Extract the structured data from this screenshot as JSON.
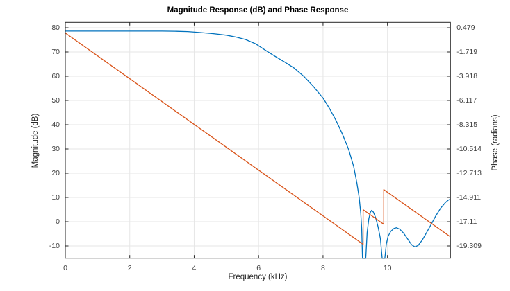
{
  "title": "Magnitude Response (dB) and Phase Response",
  "chart_data": {
    "type": "line",
    "title": "Magnitude Response (dB) and Phase Response",
    "xlabel": "Frequency (kHz)",
    "ylabel_left": "Magnitude (dB)",
    "ylabel_right": "Phase (radians)",
    "xlim": [
      0,
      11.955
    ],
    "ylim_left": [
      -15.06,
      82.2
    ],
    "grid": true,
    "legend": "none",
    "x_ticks": [
      0,
      2,
      4,
      6,
      8,
      10
    ],
    "y_ticks_left": [
      80,
      70,
      60,
      50,
      40,
      30,
      20,
      10,
      0,
      -10
    ],
    "y_tick_labels_right": [
      "0.479",
      "-1.719",
      "-3.918",
      "-6.117",
      "-8.315",
      "-10.514",
      "-12.713",
      "-14.911",
      "-17.11",
      "-19.309"
    ],
    "right_axis_map": {
      "rad_at_80dB": 0.479,
      "rad_per_10dB": 2.1987
    },
    "colors": {
      "magnitude": "#0072BD",
      "phase": "#D95319",
      "grid": "#e6e6e6",
      "axis": "#262626"
    },
    "series": [
      {
        "name": "magnitude_db",
        "axis": "left",
        "color": "#0072BD",
        "points": [
          [
            0,
            78.6
          ],
          [
            0.6,
            78.6
          ],
          [
            1.2,
            78.6
          ],
          [
            1.8,
            78.6
          ],
          [
            2.4,
            78.6
          ],
          [
            3.0,
            78.6
          ],
          [
            3.4,
            78.55
          ],
          [
            3.8,
            78.4
          ],
          [
            4.2,
            78.0
          ],
          [
            4.6,
            77.55
          ],
          [
            5.0,
            76.9
          ],
          [
            5.3,
            76.15
          ],
          [
            5.6,
            75.1
          ],
          [
            5.9,
            73.4
          ],
          [
            6.2,
            70.8
          ],
          [
            6.5,
            68.3
          ],
          [
            6.8,
            65.9
          ],
          [
            7.1,
            63.4
          ],
          [
            7.4,
            60.0
          ],
          [
            7.7,
            55.8
          ],
          [
            8.0,
            51.0
          ],
          [
            8.2,
            46.7
          ],
          [
            8.4,
            41.8
          ],
          [
            8.6,
            36.2
          ],
          [
            8.8,
            29.6
          ],
          [
            8.95,
            22.8
          ],
          [
            9.05,
            16.0
          ],
          [
            9.12,
            10.0
          ],
          [
            9.17,
            3.5
          ],
          [
            9.2,
            -3.0
          ],
          [
            9.225,
            -15.06
          ],
          [
            9.325,
            -15.06
          ],
          [
            9.37,
            -4.5
          ],
          [
            9.42,
            1.2
          ],
          [
            9.47,
            3.9
          ],
          [
            9.51,
            4.7
          ],
          [
            9.56,
            4.0
          ],
          [
            9.63,
            1.8
          ],
          [
            9.71,
            -2.2
          ],
          [
            9.78,
            -7.0
          ],
          [
            9.835,
            -15.06
          ],
          [
            9.92,
            -15.06
          ],
          [
            9.965,
            -9.2
          ],
          [
            10.02,
            -6.0
          ],
          [
            10.1,
            -4.0
          ],
          [
            10.2,
            -2.8
          ],
          [
            10.28,
            -2.5
          ],
          [
            10.38,
            -3.1
          ],
          [
            10.5,
            -4.7
          ],
          [
            10.62,
            -7.0
          ],
          [
            10.75,
            -9.5
          ],
          [
            10.85,
            -10.4
          ],
          [
            10.95,
            -9.8
          ],
          [
            11.08,
            -7.6
          ],
          [
            11.2,
            -4.8
          ],
          [
            11.35,
            -1.3
          ],
          [
            11.5,
            2.4
          ],
          [
            11.65,
            5.6
          ],
          [
            11.8,
            7.9
          ],
          [
            11.89,
            8.9
          ],
          [
            11.955,
            9.3
          ]
        ]
      },
      {
        "name": "phase_radians",
        "axis": "right",
        "color": "#D95319",
        "points": [
          [
            0,
            0
          ],
          [
            9.245,
            -19.157
          ],
          [
            9.245,
            -16.016
          ],
          [
            9.885,
            -17.342
          ],
          [
            9.885,
            -14.2
          ],
          [
            11.955,
            -18.49
          ]
        ]
      }
    ]
  }
}
